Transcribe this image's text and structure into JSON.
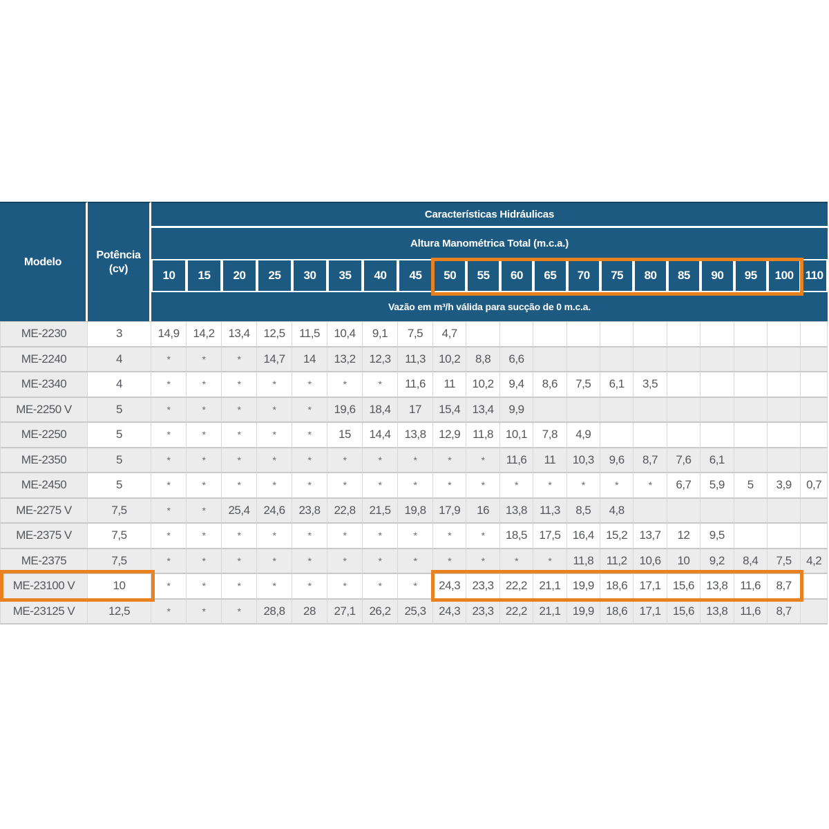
{
  "colors": {
    "header_blue": "#1d5a82",
    "highlight_orange": "#e8811f",
    "row_alt_gray": "#ececec",
    "cell_text": "#54565a"
  },
  "table": {
    "header": {
      "model_label": "Modelo",
      "power_label_line1": "Potência",
      "power_label_line2": "(cv)",
      "group_title": "Características Hidráulicas",
      "subgroup_title": "Altura Manométrica Total (m.c.a.)",
      "flow_note": "Vazão em m³/h válida para sucção de 0 m.c.a.",
      "columns": [
        "10",
        "15",
        "20",
        "25",
        "30",
        "35",
        "40",
        "45",
        "50",
        "55",
        "60",
        "65",
        "70",
        "75",
        "80",
        "85",
        "90",
        "95",
        "100",
        "110"
      ]
    },
    "rows": [
      {
        "model": "ME-2230",
        "power": "3",
        "values": [
          "14,9",
          "14,2",
          "13,4",
          "12,5",
          "11,5",
          "10,4",
          "9,1",
          "7,5",
          "4,7",
          "",
          "",
          "",
          "",
          "",
          "",
          "",
          "",
          "",
          "",
          ""
        ]
      },
      {
        "model": "ME-2240",
        "power": "4",
        "values": [
          "*",
          "*",
          "*",
          "14,7",
          "14",
          "13,2",
          "12,3",
          "11,3",
          "10,2",
          "8,8",
          "6,6",
          "",
          "",
          "",
          "",
          "",
          "",
          "",
          "",
          ""
        ]
      },
      {
        "model": "ME-2340",
        "power": "4",
        "values": [
          "*",
          "*",
          "*",
          "*",
          "*",
          "*",
          "*",
          "11,6",
          "11",
          "10,2",
          "9,4",
          "8,6",
          "7,5",
          "6,1",
          "3,5",
          "",
          "",
          "",
          "",
          ""
        ]
      },
      {
        "model": "ME-2250 V",
        "power": "5",
        "values": [
          "*",
          "*",
          "*",
          "*",
          "*",
          "19,6",
          "18,4",
          "17",
          "15,4",
          "13,4",
          "9,9",
          "",
          "",
          "",
          "",
          "",
          "",
          "",
          "",
          ""
        ]
      },
      {
        "model": "ME-2250",
        "power": "5",
        "values": [
          "*",
          "*",
          "*",
          "*",
          "*",
          "15",
          "14,4",
          "13,8",
          "12,9",
          "11,8",
          "10,1",
          "7,8",
          "4,9",
          "",
          "",
          "",
          "",
          "",
          "",
          ""
        ]
      },
      {
        "model": "ME-2350",
        "power": "5",
        "values": [
          "*",
          "*",
          "*",
          "*",
          "*",
          "*",
          "*",
          "*",
          "*",
          "*",
          "11,6",
          "11",
          "10,3",
          "9,6",
          "8,7",
          "7,6",
          "6,1",
          "",
          "",
          ""
        ]
      },
      {
        "model": "ME-2450",
        "power": "5",
        "values": [
          "*",
          "*",
          "*",
          "*",
          "*",
          "*",
          "*",
          "*",
          "*",
          "*",
          "*",
          "*",
          "*",
          "*",
          "*",
          "6,7",
          "5,9",
          "5",
          "3,9",
          "0,7"
        ]
      },
      {
        "model": "ME-2275 V",
        "power": "7,5",
        "values": [
          "*",
          "*",
          "25,4",
          "24,6",
          "23,8",
          "22,8",
          "21,5",
          "19,8",
          "17,9",
          "16",
          "13,8",
          "11,3",
          "8,5",
          "4,8",
          "",
          "",
          "",
          "",
          "",
          ""
        ]
      },
      {
        "model": "ME-2375 V",
        "power": "7,5",
        "values": [
          "*",
          "*",
          "*",
          "*",
          "*",
          "*",
          "*",
          "*",
          "*",
          "*",
          "18,5",
          "17,5",
          "16,4",
          "15,2",
          "13,7",
          "12",
          "9,5",
          "",
          "",
          ""
        ]
      },
      {
        "model": "ME-2375",
        "power": "7,5",
        "values": [
          "*",
          "*",
          "*",
          "*",
          "*",
          "*",
          "*",
          "*",
          "*",
          "*",
          "*",
          "*",
          "11,8",
          "11,2",
          "10,6",
          "10",
          "9,2",
          "8,4",
          "7,5",
          "4,2"
        ]
      },
      {
        "model": "ME-23100 V",
        "power": "10",
        "values": [
          "*",
          "*",
          "*",
          "*",
          "*",
          "*",
          "*",
          "*",
          "24,3",
          "23,3",
          "22,2",
          "21,1",
          "19,9",
          "18,6",
          "17,1",
          "15,6",
          "13,8",
          "11,6",
          "8,7",
          ""
        ]
      },
      {
        "model": "ME-23125 V",
        "power": "12,5",
        "values": [
          "*",
          "*",
          "*",
          "28,8",
          "28",
          "27,1",
          "26,2",
          "25,3",
          "24,3",
          "23,3",
          "22,2",
          "21,1",
          "19,9",
          "18,6",
          "17,1",
          "15,6",
          "13,8",
          "11,6",
          "8,7",
          ""
        ]
      }
    ],
    "highlights": {
      "header_columns_from": "50",
      "header_columns_to": "100",
      "highlighted_model": "ME-23100 V",
      "highlighted_power": "10",
      "row_cells_from": "50",
      "row_cells_to": "100"
    }
  }
}
